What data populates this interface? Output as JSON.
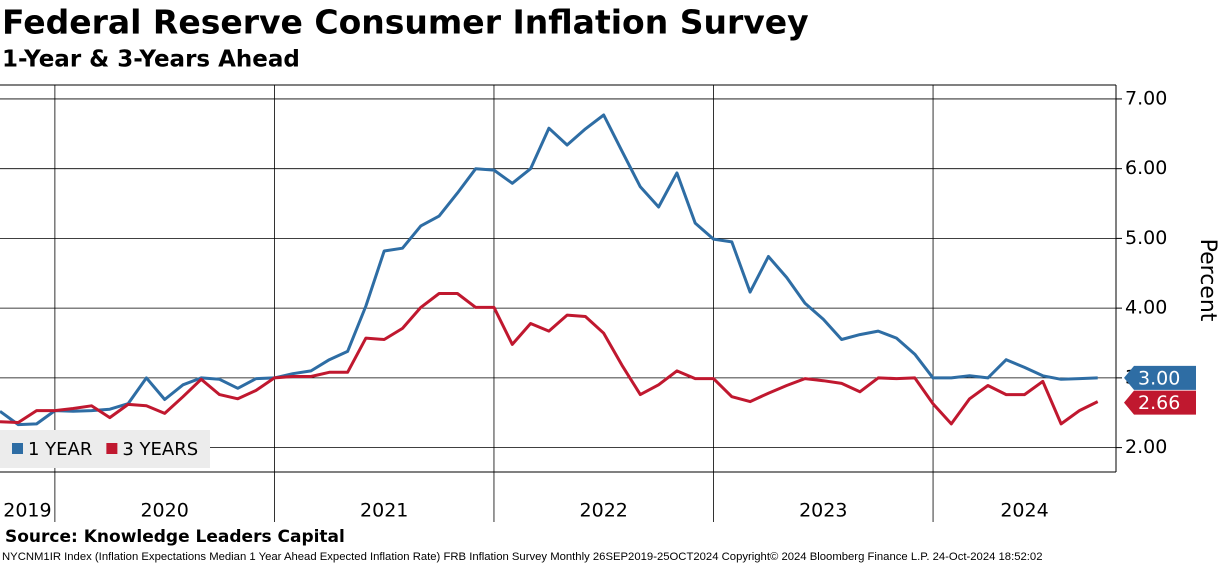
{
  "chart_data": {
    "type": "line",
    "title": "Federal Reserve Consumer Inflation Survey",
    "subtitle": "1-Year & 3-Years Ahead",
    "y_label": "Percent",
    "source": "Source: Knowledge Leaders Capital",
    "footnote": "NYCNM1IR Index (Inflation Expectations Median 1 Year Ahead Expected Inflation Rate) FRB Inflation Survey  Monthly 26SEP2019-25OCT2024  Copyright© 2024 Bloomberg Finance L.P.  24-Oct-2024 18:52:02",
    "x": [
      "2019-10",
      "2019-11",
      "2019-12",
      "2020-01",
      "2020-02",
      "2020-03",
      "2020-04",
      "2020-05",
      "2020-06",
      "2020-07",
      "2020-08",
      "2020-09",
      "2020-10",
      "2020-11",
      "2020-12",
      "2021-01",
      "2021-02",
      "2021-03",
      "2021-04",
      "2021-05",
      "2021-06",
      "2021-07",
      "2021-08",
      "2021-09",
      "2021-10",
      "2021-11",
      "2021-12",
      "2022-01",
      "2022-02",
      "2022-03",
      "2022-04",
      "2022-05",
      "2022-06",
      "2022-07",
      "2022-08",
      "2022-09",
      "2022-10",
      "2022-11",
      "2022-12",
      "2023-01",
      "2023-02",
      "2023-03",
      "2023-04",
      "2023-05",
      "2023-06",
      "2023-07",
      "2023-08",
      "2023-09",
      "2023-10",
      "2023-11",
      "2023-12",
      "2024-01",
      "2024-02",
      "2024-03",
      "2024-04",
      "2024-05",
      "2024-06",
      "2024-07",
      "2024-08",
      "2024-09",
      "2024-10"
    ],
    "xlim": [
      "2019-10",
      "2024-11"
    ],
    "year_labels": [
      "2019",
      "2020",
      "2021",
      "2022",
      "2023",
      "2024"
    ],
    "series": [
      {
        "name": "1 YEAR",
        "color": "#2e6da4",
        "values": [
          2.52,
          2.33,
          2.34,
          2.53,
          2.52,
          2.53,
          2.55,
          2.63,
          3.0,
          2.69,
          2.9,
          3.0,
          2.98,
          2.85,
          2.99,
          3.0,
          3.06,
          3.1,
          3.26,
          3.38,
          4.03,
          4.82,
          4.86,
          5.18,
          5.32,
          5.65,
          6.0,
          5.98,
          5.79,
          6.0,
          6.58,
          6.34,
          6.57,
          6.77,
          6.25,
          5.74,
          5.45,
          5.94,
          5.22,
          4.99,
          4.95,
          4.23,
          4.74,
          4.44,
          4.07,
          3.84,
          3.55,
          3.62,
          3.67,
          3.57,
          3.34,
          3.0,
          3.0,
          3.03,
          3.0,
          3.26,
          3.15,
          3.03,
          2.98,
          2.99,
          3.0
        ],
        "value_labels": [
          null,
          null,
          null,
          null,
          null,
          null,
          null,
          null,
          null,
          null,
          null,
          null,
          null,
          null,
          null,
          null,
          null,
          null,
          null,
          null,
          null,
          null,
          null,
          null,
          null,
          null,
          null,
          null,
          null,
          null,
          null,
          null,
          null,
          null,
          null,
          null,
          null,
          null,
          null,
          null,
          null,
          null,
          null,
          null,
          null,
          null,
          null,
          null,
          null,
          null,
          null,
          null,
          null,
          null,
          null,
          null,
          null,
          null,
          null,
          null,
          "3.00"
        ]
      },
      {
        "name": "3 YEARS",
        "color": "#c0182f",
        "values": [
          2.37,
          2.36,
          2.53,
          2.53,
          2.56,
          2.6,
          2.43,
          2.62,
          2.6,
          2.49,
          2.73,
          2.98,
          2.76,
          2.7,
          2.82,
          3.0,
          3.02,
          3.02,
          3.08,
          3.08,
          3.57,
          3.55,
          3.71,
          4.01,
          4.21,
          4.21,
          4.01,
          4.01,
          3.48,
          3.78,
          3.67,
          3.9,
          3.88,
          3.64,
          3.18,
          2.76,
          2.9,
          3.1,
          2.99,
          2.99,
          2.73,
          2.66,
          2.78,
          2.89,
          2.99,
          2.96,
          2.92,
          2.8,
          3.0,
          2.99,
          3.0,
          2.63,
          2.34,
          2.7,
          2.89,
          2.76,
          2.76,
          2.95,
          2.34,
          2.53,
          2.66
        ],
        "value_labels": [
          null,
          null,
          null,
          null,
          null,
          null,
          null,
          null,
          null,
          null,
          null,
          null,
          null,
          null,
          null,
          null,
          null,
          null,
          null,
          null,
          null,
          null,
          null,
          null,
          null,
          null,
          null,
          null,
          null,
          null,
          null,
          null,
          null,
          null,
          null,
          null,
          null,
          null,
          null,
          null,
          null,
          null,
          null,
          null,
          null,
          null,
          null,
          null,
          null,
          null,
          null,
          null,
          null,
          null,
          null,
          null,
          null,
          null,
          null,
          null,
          "2.66"
        ]
      }
    ],
    "ylim": [
      1.65,
      7.2
    ],
    "yticks": [
      {
        "value": 2,
        "label": "2.00"
      },
      {
        "value": 3,
        "label": "3.00"
      },
      {
        "value": 4,
        "label": "4.00"
      },
      {
        "value": 5,
        "label": "5.00"
      },
      {
        "value": 6,
        "label": "6.00"
      },
      {
        "value": 7,
        "label": "7.00"
      }
    ],
    "grid": true,
    "legend": "lower left"
  }
}
